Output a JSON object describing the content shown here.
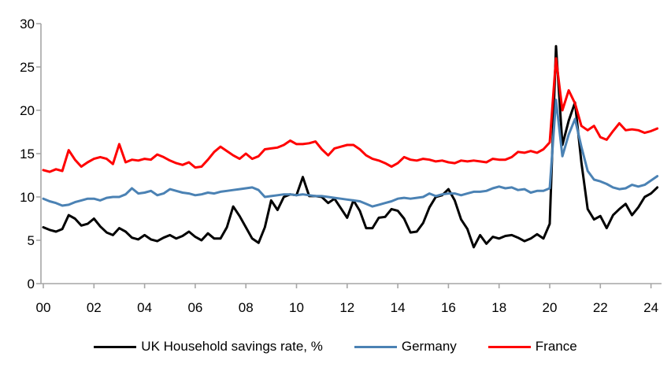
{
  "chart_data": {
    "type": "line",
    "title": "",
    "xlabel": "",
    "ylabel": "",
    "grid": false,
    "legend_position": "bottom",
    "background_color": "#ffffff",
    "axis_color": "#a6a6a6",
    "tick_label_color": "#000000",
    "ylim": [
      0,
      30
    ],
    "y_ticks": [
      0,
      5,
      10,
      15,
      20,
      25,
      30
    ],
    "x_ticks": [
      "00",
      "02",
      "04",
      "06",
      "08",
      "10",
      "12",
      "14",
      "16",
      "18",
      "20",
      "22",
      "24"
    ],
    "x_tick_interval_years": 2,
    "x_start": 2000.0,
    "x_step": 0.25,
    "series": [
      {
        "name": "UK Household savings rate, %",
        "color": "#000000",
        "values": [
          6.5,
          6.2,
          6.0,
          6.3,
          7.9,
          7.5,
          6.7,
          6.9,
          7.5,
          6.6,
          5.9,
          5.6,
          6.4,
          6.0,
          5.3,
          5.1,
          5.6,
          5.1,
          4.9,
          5.3,
          5.6,
          5.2,
          5.5,
          6.0,
          5.4,
          5.0,
          5.8,
          5.2,
          5.2,
          6.5,
          8.9,
          7.8,
          6.5,
          5.2,
          4.7,
          6.5,
          9.6,
          8.5,
          10.0,
          10.3,
          10.2,
          12.3,
          10.1,
          10.1,
          10.0,
          9.3,
          9.8,
          8.7,
          7.6,
          9.6,
          8.4,
          6.4,
          6.4,
          7.6,
          7.7,
          8.6,
          8.4,
          7.5,
          5.9,
          6.0,
          7.0,
          8.8,
          10.0,
          10.2,
          10.9,
          9.6,
          7.4,
          6.3,
          4.2,
          5.6,
          4.6,
          5.4,
          5.2,
          5.5,
          5.6,
          5.3,
          4.9,
          5.2,
          5.7,
          5.2,
          6.9,
          27.4,
          16.0,
          18.8,
          20.9,
          14.0,
          8.6,
          7.4,
          7.8,
          6.4,
          7.9,
          8.6,
          9.2,
          7.9,
          8.8,
          10.0,
          10.4,
          11.1
        ]
      },
      {
        "name": "Germany",
        "color": "#4b82b4",
        "values": [
          9.8,
          9.5,
          9.3,
          9.0,
          9.1,
          9.4,
          9.6,
          9.8,
          9.8,
          9.6,
          9.9,
          10.0,
          10.0,
          10.3,
          11.0,
          10.4,
          10.5,
          10.7,
          10.2,
          10.4,
          10.9,
          10.7,
          10.5,
          10.4,
          10.2,
          10.3,
          10.5,
          10.4,
          10.6,
          10.7,
          10.8,
          10.9,
          11.0,
          11.1,
          10.8,
          10.0,
          10.1,
          10.2,
          10.3,
          10.3,
          10.2,
          10.3,
          10.2,
          10.1,
          10.1,
          10.0,
          9.9,
          9.8,
          9.7,
          9.6,
          9.5,
          9.2,
          8.9,
          9.1,
          9.3,
          9.5,
          9.8,
          9.9,
          9.8,
          9.9,
          10.0,
          10.4,
          10.1,
          10.3,
          10.4,
          10.4,
          10.2,
          10.4,
          10.6,
          10.6,
          10.7,
          11.0,
          11.2,
          11.0,
          11.1,
          10.8,
          10.9,
          10.5,
          10.7,
          10.7,
          11.0,
          21.2,
          14.7,
          17.2,
          19.0,
          15.8,
          13.0,
          12.0,
          11.8,
          11.5,
          11.1,
          10.9,
          11.0,
          11.4,
          11.2,
          11.4,
          11.9,
          12.4
        ]
      },
      {
        "name": "France",
        "color": "#ff0000",
        "values": [
          13.1,
          12.9,
          13.2,
          13.0,
          15.4,
          14.3,
          13.5,
          14.0,
          14.4,
          14.6,
          14.4,
          13.8,
          16.1,
          14.0,
          14.3,
          14.2,
          14.4,
          14.3,
          14.9,
          14.6,
          14.2,
          13.9,
          13.7,
          14.0,
          13.4,
          13.5,
          14.3,
          15.2,
          15.8,
          15.3,
          14.8,
          14.4,
          15.0,
          14.4,
          14.7,
          15.5,
          15.6,
          15.7,
          16.0,
          16.5,
          16.1,
          16.1,
          16.2,
          16.4,
          15.5,
          14.8,
          15.6,
          15.8,
          16.0,
          16.0,
          15.5,
          14.8,
          14.4,
          14.2,
          13.9,
          13.5,
          13.9,
          14.6,
          14.3,
          14.2,
          14.4,
          14.3,
          14.1,
          14.2,
          14.0,
          13.9,
          14.2,
          14.1,
          14.2,
          14.1,
          14.0,
          14.4,
          14.3,
          14.3,
          14.6,
          15.2,
          15.1,
          15.3,
          15.1,
          15.5,
          16.3,
          26.0,
          20.0,
          22.3,
          20.8,
          18.2,
          17.7,
          18.2,
          16.9,
          16.6,
          17.6,
          18.5,
          17.7,
          17.8,
          17.7,
          17.4,
          17.6,
          17.9
        ]
      }
    ]
  }
}
